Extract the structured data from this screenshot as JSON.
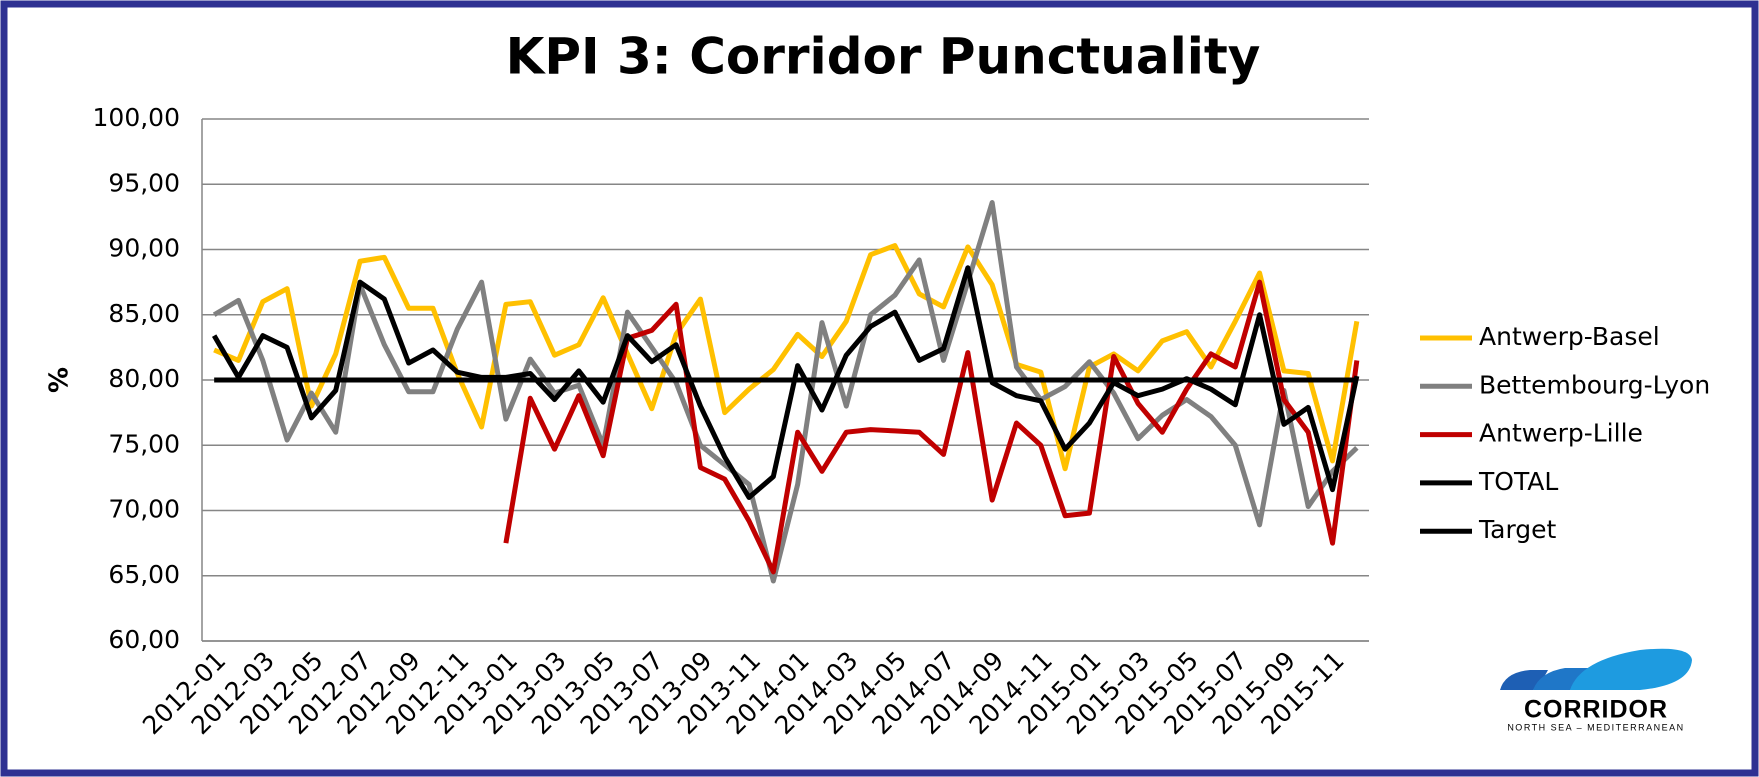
{
  "chart_data": {
    "type": "line",
    "title": "KPI 3: Corridor Punctuality",
    "y_label": "%",
    "categories": [
      "2012-01",
      null,
      "2012-03",
      null,
      "2012-05",
      null,
      "2012-07",
      null,
      "2012-09",
      null,
      "2012-11",
      null,
      "2013-01",
      null,
      "2013-03",
      null,
      "2013-05",
      null,
      "2013-07",
      null,
      "2013-09",
      null,
      "2013-11",
      null,
      "2014-01",
      null,
      "2014-03",
      null,
      "2014-05",
      null,
      "2014-07",
      null,
      "2014-09",
      null,
      "2014-11",
      null,
      "2015-01",
      null,
      "2015-03",
      null,
      "2015-05",
      null,
      "2015-07",
      null,
      "2015-09",
      null,
      "2015-11",
      null
    ],
    "series": [
      {
        "name": "Antwerp-Basel",
        "color": "#ffc000",
        "values": [
          82.3,
          81.5,
          86,
          87,
          78,
          82,
          89.1,
          89.4,
          85.5,
          85.5,
          80.5,
          76.4,
          85.8,
          86,
          81.9,
          82.7,
          86.3,
          82,
          77.8,
          83.5,
          86.2,
          77.5,
          79.3,
          80.8,
          83.5,
          81.8,
          84.5,
          89.6,
          90.3,
          86.6,
          85.6,
          90.2,
          87.3,
          81.2,
          80.6,
          73.2,
          81,
          82,
          80.7,
          83,
          83.7,
          81,
          84.5,
          88.2,
          80.7,
          80.5,
          73.8,
          84.5
        ]
      },
      {
        "name": "Bettembourg-Lyon",
        "color": "#808080",
        "values": [
          85,
          86.1,
          81.5,
          75.4,
          79,
          76,
          87.3,
          82.7,
          79.1,
          79.1,
          83.9,
          87.5,
          77,
          81.6,
          79,
          79.6,
          75,
          85.2,
          82.5,
          79.8,
          75,
          73.5,
          72,
          64.6,
          72,
          84.4,
          78,
          85,
          86.5,
          89.2,
          81.5,
          87.5,
          93.6,
          81,
          78.5,
          79.5,
          81.4,
          79,
          75.5,
          77.3,
          78.5,
          77.2,
          75,
          68.9,
          79.2,
          70.3,
          73,
          74.8
        ]
      },
      {
        "name": "Antwerp-Lille",
        "color": "#c00000",
        "values": [
          null,
          null,
          null,
          null,
          null,
          null,
          null,
          null,
          null,
          null,
          null,
          null,
          67.5,
          78.6,
          74.7,
          78.8,
          74.2,
          83.2,
          83.8,
          85.8,
          73.3,
          72.4,
          69.2,
          65.3,
          76,
          73,
          76,
          76.2,
          76.1,
          76,
          74.3,
          82.1,
          70.8,
          76.7,
          75,
          69.6,
          69.8,
          81.8,
          78.2,
          76,
          79.3,
          82,
          81,
          87.5,
          78.5,
          76,
          67.5,
          81.5
        ]
      },
      {
        "name": "TOTAL",
        "color": "#000000",
        "values": [
          83.4,
          80.2,
          83.4,
          82.5,
          77.1,
          79.2,
          87.5,
          86.2,
          81.3,
          82.3,
          80.6,
          80.2,
          80.2,
          80.5,
          78.5,
          80.7,
          78.3,
          83.4,
          81.4,
          82.7,
          78,
          74.1,
          71,
          72.6,
          81.1,
          77.7,
          81.9,
          84.1,
          85.2,
          81.5,
          82.4,
          88.6,
          79.8,
          78.8,
          78.4,
          74.7,
          76.7,
          79.8,
          78.8,
          79.3,
          80.1,
          79.3,
          78.1,
          85,
          76.6,
          77.9,
          71.6,
          80.3
        ]
      },
      {
        "name": "Target",
        "color": "#000000",
        "values": [
          80,
          80,
          80,
          80,
          80,
          80,
          80,
          80,
          80,
          80,
          80,
          80,
          80,
          80,
          80,
          80,
          80,
          80,
          80,
          80,
          80,
          80,
          80,
          80,
          80,
          80,
          80,
          80,
          80,
          80,
          80,
          80,
          80,
          80,
          80,
          80,
          80,
          80,
          80,
          80,
          80,
          80,
          80,
          80,
          80,
          80,
          80,
          80
        ]
      }
    ],
    "ylim": [
      60,
      100
    ],
    "yticks": [
      {
        "value": 60,
        "label": "60,00"
      },
      {
        "value": 65,
        "label": "65,00"
      },
      {
        "value": 70,
        "label": "70,00"
      },
      {
        "value": 75,
        "label": "75,00"
      },
      {
        "value": 80,
        "label": "80,00"
      },
      {
        "value": 85,
        "label": "85,00"
      },
      {
        "value": 90,
        "label": "90,00"
      },
      {
        "value": 95,
        "label": "95,00"
      },
      {
        "value": 100,
        "label": "100,00"
      }
    ],
    "grid": true,
    "legend": "right"
  },
  "logo": {
    "name": "CORRIDOR",
    "tagline": "NORTH SEA – MEDITERRANEAN"
  }
}
